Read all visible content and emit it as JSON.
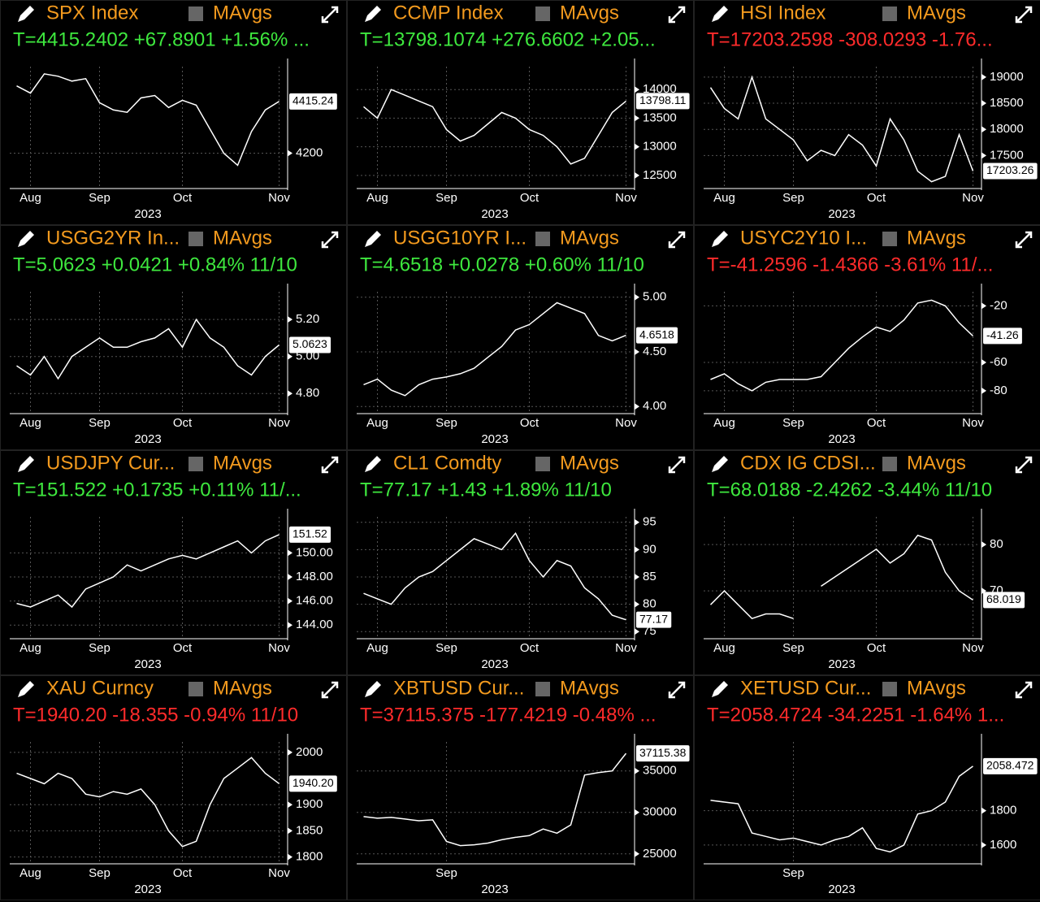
{
  "panels": [
    {
      "ticker": "SPX Index",
      "mavgs": "MAvgs",
      "quote": "T=4415.2402 +67.8901 +1.56% ...",
      "quote_color": "#3ee83e",
      "chart": {
        "type": "line",
        "line_color": "#ffffff",
        "categories": [
          null,
          "Aug",
          null,
          null,
          null,
          null,
          "Sep",
          null,
          null,
          null,
          null,
          null,
          "Oct",
          null,
          null,
          null,
          null,
          null,
          null,
          "Nov"
        ],
        "year": "2023",
        "values": [
          4480,
          4450,
          4530,
          4520,
          4500,
          4510,
          4410,
          4380,
          4370,
          4430,
          4440,
          4390,
          4420,
          4400,
          4300,
          4200,
          4150,
          4290,
          4380,
          4415.24
        ],
        "ylim": [
          4060,
          4560
        ],
        "yticks": [
          4200
        ],
        "last_label": "4415.24",
        "grid": true
      }
    },
    {
      "ticker": "CCMP Index",
      "mavgs": "MAvgs",
      "quote": "T=13798.1074 +276.6602 +2.05...",
      "quote_color": "#3ee83e",
      "chart": {
        "type": "line",
        "line_color": "#ffffff",
        "categories": [
          null,
          "Aug",
          null,
          null,
          null,
          null,
          "Sep",
          null,
          null,
          null,
          null,
          null,
          "Oct",
          null,
          null,
          null,
          null,
          null,
          null,
          "Nov"
        ],
        "year": "2023",
        "values": [
          13700,
          13500,
          14000,
          13900,
          13800,
          13700,
          13300,
          13100,
          13200,
          13400,
          13600,
          13500,
          13300,
          13200,
          13000,
          12700,
          12800,
          13200,
          13600,
          13798.11
        ],
        "ylim": [
          12300,
          14400
        ],
        "yticks": [
          12500,
          13000,
          13500,
          14000
        ],
        "last_label": "13798.11",
        "grid": true
      }
    },
    {
      "ticker": "HSI Index",
      "mavgs": "MAvgs",
      "quote": "T=17203.2598 -308.0293 -1.76...",
      "quote_color": "#ff2b2b",
      "chart": {
        "type": "line",
        "line_color": "#ffffff",
        "categories": [
          null,
          "Aug",
          null,
          null,
          null,
          null,
          "Sep",
          null,
          null,
          null,
          null,
          null,
          "Oct",
          null,
          null,
          null,
          null,
          null,
          null,
          "Nov"
        ],
        "year": "2023",
        "values": [
          18800,
          18400,
          18200,
          19000,
          18200,
          18000,
          17800,
          17400,
          17600,
          17500,
          17900,
          17700,
          17300,
          18200,
          17800,
          17200,
          17000,
          17100,
          17900,
          17203.26
        ],
        "ylim": [
          16900,
          19200
        ],
        "yticks": [
          17500,
          18000,
          18500,
          19000
        ],
        "last_label": "17203.26",
        "grid": true
      }
    },
    {
      "ticker": "USGG2YR In...",
      "mavgs": "MAvgs",
      "quote": "T=5.0623 +0.0421 +0.84% 11/10",
      "quote_color": "#3ee83e",
      "chart": {
        "type": "line",
        "line_color": "#ffffff",
        "categories": [
          null,
          "Aug",
          null,
          null,
          null,
          null,
          "Sep",
          null,
          null,
          null,
          null,
          null,
          "Oct",
          null,
          null,
          null,
          null,
          null,
          null,
          "Nov"
        ],
        "year": "2023",
        "values": [
          4.95,
          4.9,
          5.0,
          4.88,
          5.0,
          5.05,
          5.1,
          5.05,
          5.05,
          5.08,
          5.1,
          5.15,
          5.05,
          5.2,
          5.1,
          5.05,
          4.95,
          4.9,
          5.0,
          5.0623
        ],
        "ylim": [
          4.7,
          5.35
        ],
        "yticks": [
          {
            "value": 4.8,
            "label": "4.80"
          },
          {
            "value": 5.0,
            "label": "5.00"
          },
          {
            "value": 5.2,
            "label": "5.20"
          }
        ],
        "last_label": "5.0623",
        "grid": true
      }
    },
    {
      "ticker": "USGG10YR I...",
      "mavgs": "MAvgs",
      "quote": "T=4.6518 +0.0278 +0.60% 11/10",
      "quote_color": "#3ee83e",
      "chart": {
        "type": "line",
        "line_color": "#ffffff",
        "categories": [
          null,
          "Aug",
          null,
          null,
          null,
          null,
          "Sep",
          null,
          null,
          null,
          null,
          null,
          "Oct",
          null,
          null,
          null,
          null,
          null,
          null,
          "Nov"
        ],
        "year": "2023",
        "values": [
          4.2,
          4.25,
          4.15,
          4.1,
          4.2,
          4.25,
          4.27,
          4.3,
          4.35,
          4.45,
          4.55,
          4.7,
          4.75,
          4.85,
          4.95,
          4.9,
          4.85,
          4.65,
          4.6,
          4.6518
        ],
        "ylim": [
          3.95,
          5.05
        ],
        "yticks": [
          {
            "value": 4.0,
            "label": "4.00"
          },
          {
            "value": 4.5,
            "label": "4.50"
          },
          {
            "value": 5.0,
            "label": "5.00"
          }
        ],
        "last_label": "4.6518",
        "grid": true
      }
    },
    {
      "ticker": "USYC2Y10 I...",
      "mavgs": "MAvgs",
      "quote": "T=-41.2596 -1.4366 -3.61% 11/...",
      "quote_color": "#ff2b2b",
      "chart": {
        "type": "line",
        "line_color": "#ffffff",
        "categories": [
          null,
          "Aug",
          null,
          null,
          null,
          null,
          "Sep",
          null,
          null,
          null,
          null,
          null,
          "Oct",
          null,
          null,
          null,
          null,
          null,
          null,
          "Nov"
        ],
        "year": "2023",
        "values": [
          -72,
          -68,
          -75,
          -80,
          -74,
          -72,
          -72,
          -72,
          -70,
          -60,
          -50,
          -42,
          -35,
          -38,
          -30,
          -18,
          -16,
          -20,
          -32,
          -41.26
        ],
        "ylim": [
          -95,
          -10
        ],
        "yticks": [
          -80,
          -60,
          -20
        ],
        "last_label": "-41.26",
        "grid": true
      }
    },
    {
      "ticker": "USDJPY Cur...",
      "mavgs": "MAvgs",
      "quote": "T=151.522 +0.1735 +0.11% 11/...",
      "quote_color": "#3ee83e",
      "chart": {
        "type": "line",
        "line_color": "#ffffff",
        "categories": [
          null,
          "Aug",
          null,
          null,
          null,
          null,
          "Sep",
          null,
          null,
          null,
          null,
          null,
          "Oct",
          null,
          null,
          null,
          null,
          null,
          null,
          "Nov"
        ],
        "year": "2023",
        "values": [
          145.8,
          145.5,
          146.0,
          146.5,
          145.5,
          147.0,
          147.5,
          148.0,
          149.0,
          148.5,
          149.0,
          149.5,
          149.8,
          149.5,
          150.0,
          150.5,
          151.0,
          150.0,
          151.0,
          151.52
        ],
        "ylim": [
          143,
          153
        ],
        "yticks": [
          {
            "value": 144,
            "label": "144.00"
          },
          {
            "value": 146,
            "label": "146.00"
          },
          {
            "value": 148,
            "label": "148.00"
          },
          {
            "value": 150,
            "label": "150.00"
          }
        ],
        "last_label": "151.52",
        "grid": true
      }
    },
    {
      "ticker": "CL1 Comdty",
      "mavgs": "MAvgs",
      "quote": "T=77.17 +1.43 +1.89% 11/10",
      "quote_color": "#3ee83e",
      "chart": {
        "type": "line",
        "line_color": "#ffffff",
        "categories": [
          null,
          "Aug",
          null,
          null,
          null,
          null,
          "Sep",
          null,
          null,
          null,
          null,
          null,
          "Oct",
          null,
          null,
          null,
          null,
          null,
          null,
          "Nov"
        ],
        "year": "2023",
        "values": [
          82,
          81,
          80,
          83,
          85,
          86,
          88,
          90,
          92,
          91,
          90,
          93,
          88,
          85,
          88,
          87,
          83,
          81,
          78,
          77.17
        ],
        "ylim": [
          74,
          96
        ],
        "yticks": [
          75,
          80,
          85,
          90,
          95
        ],
        "last_label": "77.17",
        "grid": true
      }
    },
    {
      "ticker": "CDX IG CDSI...",
      "mavgs": "MAvgs",
      "quote": "T=68.0188 -2.4262 -3.44% 11/10",
      "quote_color": "#3ee83e",
      "chart": {
        "type": "line",
        "line_color": "#ffffff",
        "categories": [
          null,
          "Aug",
          null,
          null,
          null,
          null,
          "Sep",
          null,
          null,
          null,
          null,
          null,
          "Oct",
          null,
          null,
          null,
          null,
          null,
          null,
          "Nov"
        ],
        "year": "2023",
        "values": [
          67,
          70,
          67,
          64,
          65,
          65,
          64,
          null,
          71,
          73,
          75,
          77,
          79,
          76,
          78,
          82,
          81,
          74,
          70,
          68.0188
        ],
        "ylim": [
          60,
          86
        ],
        "yticks": [
          70,
          80
        ],
        "last_label": "68.019",
        "grid": true
      }
    },
    {
      "ticker": "XAU Curncy",
      "mavgs": "MAvgs",
      "quote": "T=1940.20 -18.355 -0.94% 11/10",
      "quote_color": "#ff2b2b",
      "chart": {
        "type": "line",
        "line_color": "#ffffff",
        "categories": [
          null,
          "Aug",
          null,
          null,
          null,
          null,
          "Sep",
          null,
          null,
          null,
          null,
          null,
          "Oct",
          null,
          null,
          null,
          null,
          null,
          null,
          "Nov"
        ],
        "year": "2023",
        "values": [
          1960,
          1950,
          1940,
          1960,
          1950,
          1920,
          1915,
          1925,
          1920,
          1930,
          1900,
          1850,
          1820,
          1830,
          1900,
          1950,
          1970,
          1990,
          1960,
          1940.2
        ],
        "ylim": [
          1790,
          2020
        ],
        "yticks": [
          1800,
          1850,
          1900,
          2000
        ],
        "last_label": "1940.20",
        "grid": true
      }
    },
    {
      "ticker": "XBTUSD Cur...",
      "mavgs": "MAvgs",
      "quote": "T=37115.375 -177.4219 -0.48% ...",
      "quote_color": "#ff2b2b",
      "chart": {
        "type": "line",
        "line_color": "#ffffff",
        "categories": [
          null,
          null,
          null,
          null,
          null,
          null,
          "Sep",
          null,
          null,
          null,
          null,
          null,
          null,
          null,
          null,
          null,
          null,
          null,
          null,
          null
        ],
        "year": "2023",
        "values": [
          29500,
          29300,
          29400,
          29200,
          29000,
          29100,
          26500,
          26000,
          26100,
          26300,
          26700,
          27000,
          27200,
          28000,
          27500,
          28500,
          34500,
          34800,
          35000,
          37115.38
        ],
        "ylim": [
          24000,
          38500
        ],
        "yticks": [
          25000,
          30000,
          35000
        ],
        "last_label": "37115.38",
        "grid": true
      }
    },
    {
      "ticker": "XETUSD Cur...",
      "mavgs": "MAvgs",
      "quote": "T=2058.4724 -34.2251 -1.64% 1...",
      "quote_color": "#ff2b2b",
      "chart": {
        "type": "line",
        "line_color": "#ffffff",
        "categories": [
          null,
          null,
          null,
          null,
          null,
          null,
          "Sep",
          null,
          null,
          null,
          null,
          null,
          null,
          null,
          null,
          null,
          null,
          null,
          null,
          null
        ],
        "year": "2023",
        "values": [
          1860,
          1850,
          1840,
          1670,
          1650,
          1630,
          1640,
          1620,
          1600,
          1630,
          1650,
          1700,
          1580,
          1560,
          1600,
          1780,
          1800,
          1850,
          2000,
          2058.47
        ],
        "ylim": [
          1500,
          2200
        ],
        "yticks": [
          1600,
          1800
        ],
        "last_label": "2058.472",
        "grid": true
      }
    }
  ]
}
